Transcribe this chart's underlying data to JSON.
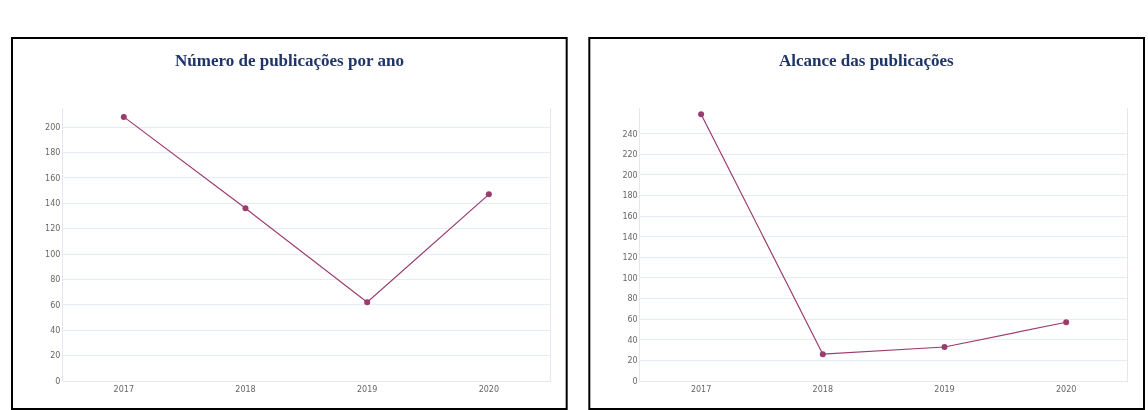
{
  "chart_data": [
    {
      "type": "line",
      "title": "Número de publicações por ano",
      "categories": [
        "2017",
        "2018",
        "2019",
        "2020"
      ],
      "series": [
        {
          "color": "#9b3b6e",
          "values": [
            208,
            136,
            62,
            147
          ]
        }
      ],
      "ylim": [
        0,
        215
      ],
      "yticks": [
        0,
        20,
        40,
        60,
        80,
        100,
        120,
        140,
        160,
        180,
        200
      ],
      "grid": "y",
      "marker": "circle",
      "line_style": "solid"
    },
    {
      "type": "line",
      "title": "Alcance das publicações",
      "categories": [
        "2017",
        "2018",
        "2019",
        "2020"
      ],
      "series": [
        {
          "color": "#9b3b6e",
          "values": [
            259,
            26,
            33,
            57
          ]
        }
      ],
      "ylim": [
        0,
        265
      ],
      "yticks": [
        0,
        20,
        40,
        60,
        80,
        100,
        120,
        140,
        160,
        180,
        200,
        220,
        240
      ],
      "grid": "y",
      "marker": "circle",
      "line_style": "solid"
    }
  ]
}
